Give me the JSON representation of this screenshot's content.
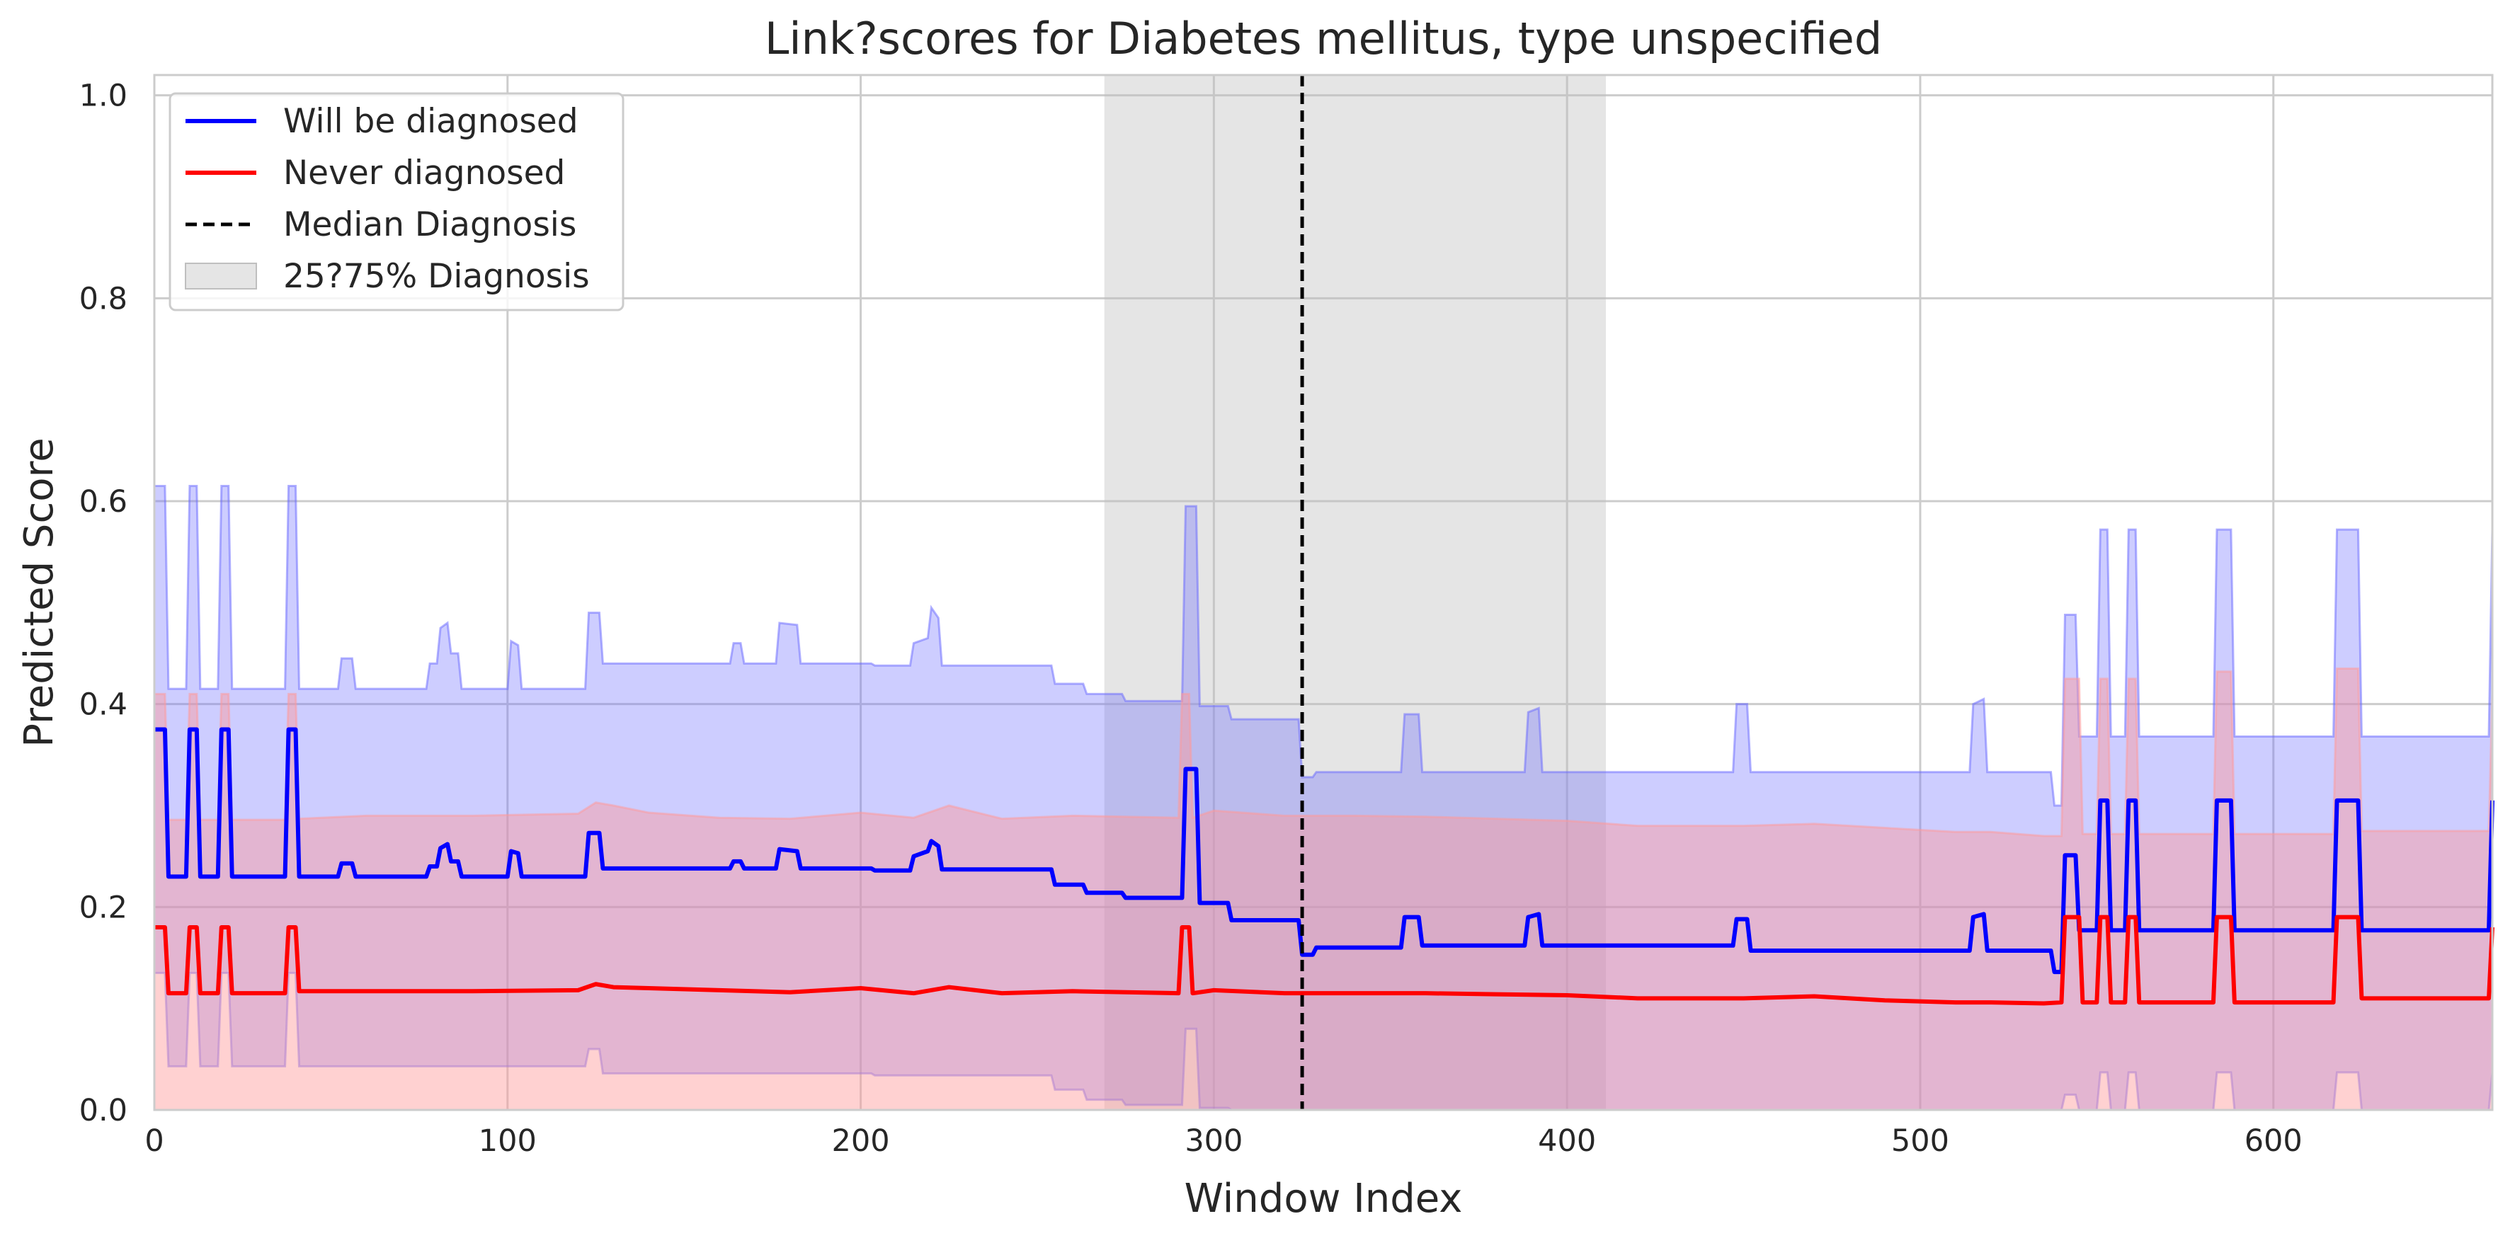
{
  "chart_data": {
    "type": "line",
    "title": "Link?scores for Diabetes mellitus, type unspecified",
    "xlabel": "Window Index",
    "ylabel": "Predicted Score",
    "xlim": [
      0,
      662
    ],
    "ylim": [
      0,
      1.02
    ],
    "x_ticks": [
      "0",
      "100",
      "200",
      "300",
      "400",
      "500",
      "600"
    ],
    "y_ticks": [
      "0.0",
      "0.2",
      "0.4",
      "0.6",
      "0.8",
      "1.0"
    ],
    "grid": true,
    "legend_position": "top-left",
    "legend": {
      "diagnosed": "Will be diagnosed",
      "never": "Never diagnosed",
      "median": "Median Diagnosis",
      "iqr": "25?75% Diagnosis"
    },
    "colors": {
      "diagnosed": "#0000ff",
      "never": "#ff0000",
      "diagnosed_band": "#6666ff",
      "never_band": "#ff9999",
      "iqr_band": "#bfbfbf",
      "median": "#000000",
      "grid": "#cccccc"
    },
    "median_diagnosis": 325,
    "iqr_diagnosis": [
      269,
      411
    ],
    "series": [
      {
        "name": "Will be diagnosed",
        "x": [
          0,
          1,
          3,
          4,
          9,
          10,
          12,
          13,
          18,
          19,
          21,
          22,
          37,
          38,
          40,
          41,
          52,
          53,
          56,
          57,
          77,
          78,
          80,
          81,
          83,
          84,
          86,
          87,
          100,
          101,
          103,
          104,
          122,
          123,
          126,
          127,
          163,
          164,
          166,
          167,
          176,
          177,
          182,
          183,
          203,
          204,
          214,
          215,
          219,
          220,
          222,
          223,
          226,
          227,
          254,
          255,
          263,
          264,
          274,
          275,
          291,
          292,
          295,
          296,
          304,
          305,
          324,
          325,
          328,
          329,
          353,
          354,
          358,
          359,
          388,
          389,
          392,
          393,
          447,
          448,
          451,
          452,
          514,
          515,
          518,
          519,
          537,
          538,
          540,
          541,
          544,
          545,
          550,
          551,
          553,
          554,
          558,
          559,
          561,
          562,
          583,
          584,
          588,
          589,
          617,
          618,
          624,
          625,
          661,
          662
        ],
        "values": [
          0.375,
          0.375,
          0.375,
          0.23,
          0.23,
          0.375,
          0.375,
          0.23,
          0.23,
          0.375,
          0.375,
          0.23,
          0.23,
          0.375,
          0.375,
          0.23,
          0.23,
          0.243,
          0.243,
          0.23,
          0.23,
          0.24,
          0.24,
          0.258,
          0.262,
          0.245,
          0.245,
          0.23,
          0.23,
          0.255,
          0.253,
          0.23,
          0.23,
          0.273,
          0.273,
          0.238,
          0.238,
          0.245,
          0.245,
          0.238,
          0.238,
          0.257,
          0.255,
          0.238,
          0.238,
          0.236,
          0.236,
          0.25,
          0.255,
          0.265,
          0.26,
          0.237,
          0.237,
          0.237,
          0.237,
          0.222,
          0.222,
          0.214,
          0.214,
          0.209,
          0.209,
          0.336,
          0.336,
          0.204,
          0.204,
          0.187,
          0.187,
          0.153,
          0.153,
          0.16,
          0.16,
          0.19,
          0.19,
          0.162,
          0.162,
          0.19,
          0.193,
          0.162,
          0.162,
          0.188,
          0.188,
          0.157,
          0.157,
          0.19,
          0.193,
          0.157,
          0.157,
          0.136,
          0.136,
          0.251,
          0.251,
          0.177,
          0.177,
          0.305,
          0.305,
          0.177,
          0.177,
          0.305,
          0.305,
          0.177,
          0.177,
          0.305,
          0.305,
          0.177,
          0.177,
          0.305,
          0.305,
          0.177,
          0.177,
          0.305
        ]
      },
      {
        "name": "Never diagnosed",
        "x": [
          0,
          1,
          3,
          4,
          9,
          10,
          12,
          13,
          18,
          19,
          21,
          22,
          37,
          38,
          40,
          41,
          60,
          90,
          120,
          125,
          130,
          140,
          160,
          180,
          200,
          215,
          225,
          240,
          260,
          290,
          291,
          293,
          294,
          300,
          320,
          340,
          360,
          380,
          400,
          420,
          450,
          470,
          490,
          510,
          520,
          535,
          540,
          541,
          542,
          545,
          546,
          550,
          551,
          553,
          554,
          558,
          559,
          561,
          562,
          583,
          584,
          588,
          589,
          617,
          618,
          624,
          625,
          661,
          662
        ],
        "values": [
          0.18,
          0.18,
          0.18,
          0.115,
          0.115,
          0.18,
          0.18,
          0.115,
          0.115,
          0.18,
          0.18,
          0.115,
          0.115,
          0.18,
          0.18,
          0.117,
          0.117,
          0.117,
          0.118,
          0.124,
          0.121,
          0.12,
          0.118,
          0.116,
          0.12,
          0.115,
          0.121,
          0.115,
          0.117,
          0.115,
          0.18,
          0.18,
          0.115,
          0.118,
          0.115,
          0.115,
          0.115,
          0.114,
          0.113,
          0.11,
          0.11,
          0.112,
          0.108,
          0.106,
          0.106,
          0.105,
          0.106,
          0.19,
          0.19,
          0.19,
          0.106,
          0.106,
          0.19,
          0.19,
          0.106,
          0.106,
          0.19,
          0.19,
          0.106,
          0.106,
          0.19,
          0.19,
          0.106,
          0.106,
          0.19,
          0.19,
          0.11,
          0.11,
          0.18
        ]
      }
    ],
    "bands": [
      {
        "series": "Will be diagnosed",
        "x": [
          0,
          1,
          3,
          4,
          9,
          10,
          12,
          13,
          18,
          19,
          21,
          22,
          37,
          38,
          40,
          41,
          52,
          53,
          56,
          57,
          77,
          78,
          80,
          81,
          83,
          84,
          86,
          87,
          100,
          101,
          103,
          104,
          122,
          123,
          126,
          127,
          163,
          164,
          166,
          167,
          176,
          177,
          182,
          183,
          203,
          204,
          214,
          215,
          219,
          220,
          222,
          223,
          226,
          227,
          254,
          255,
          263,
          264,
          274,
          275,
          291,
          292,
          295,
          296,
          304,
          305,
          324,
          325,
          328,
          329,
          353,
          354,
          358,
          359,
          388,
          389,
          392,
          393,
          447,
          448,
          451,
          452,
          514,
          515,
          518,
          519,
          537,
          538,
          540,
          541,
          544,
          545,
          550,
          551,
          553,
          554,
          558,
          559,
          561,
          562,
          583,
          584,
          588,
          589,
          617,
          618,
          624,
          625,
          661,
          662
        ],
        "upper": [
          0.615,
          0.615,
          0.615,
          0.415,
          0.415,
          0.615,
          0.615,
          0.415,
          0.415,
          0.615,
          0.615,
          0.415,
          0.415,
          0.615,
          0.615,
          0.415,
          0.415,
          0.445,
          0.445,
          0.415,
          0.415,
          0.44,
          0.44,
          0.475,
          0.48,
          0.45,
          0.45,
          0.415,
          0.415,
          0.462,
          0.458,
          0.415,
          0.415,
          0.49,
          0.49,
          0.44,
          0.44,
          0.46,
          0.46,
          0.44,
          0.44,
          0.48,
          0.478,
          0.44,
          0.44,
          0.438,
          0.438,
          0.46,
          0.465,
          0.495,
          0.485,
          0.438,
          0.438,
          0.438,
          0.438,
          0.42,
          0.42,
          0.41,
          0.41,
          0.403,
          0.403,
          0.595,
          0.595,
          0.398,
          0.398,
          0.385,
          0.385,
          0.328,
          0.328,
          0.333,
          0.333,
          0.39,
          0.39,
          0.333,
          0.333,
          0.392,
          0.396,
          0.333,
          0.333,
          0.4,
          0.4,
          0.333,
          0.333,
          0.4,
          0.405,
          0.333,
          0.333,
          0.3,
          0.3,
          0.488,
          0.488,
          0.368,
          0.368,
          0.572,
          0.572,
          0.368,
          0.368,
          0.572,
          0.572,
          0.368,
          0.368,
          0.572,
          0.572,
          0.368,
          0.368,
          0.572,
          0.572,
          0.368,
          0.368,
          0.572
        ],
        "lower": [
          0.135,
          0.135,
          0.135,
          0.043,
          0.043,
          0.135,
          0.135,
          0.043,
          0.043,
          0.135,
          0.135,
          0.043,
          0.043,
          0.135,
          0.135,
          0.043,
          0.043,
          0.043,
          0.043,
          0.043,
          0.043,
          0.043,
          0.043,
          0.043,
          0.043,
          0.043,
          0.043,
          0.043,
          0.043,
          0.043,
          0.043,
          0.043,
          0.043,
          0.06,
          0.06,
          0.036,
          0.036,
          0.036,
          0.036,
          0.036,
          0.036,
          0.036,
          0.036,
          0.036,
          0.036,
          0.034,
          0.034,
          0.034,
          0.034,
          0.034,
          0.034,
          0.034,
          0.034,
          0.034,
          0.034,
          0.02,
          0.02,
          0.01,
          0.01,
          0.005,
          0.005,
          0.08,
          0.08,
          0.002,
          0.002,
          0,
          0,
          0,
          0,
          0,
          0,
          0,
          0,
          0,
          0,
          0,
          0,
          0,
          0,
          0,
          0,
          0,
          0,
          0,
          0,
          0,
          0,
          0,
          0,
          0.015,
          0.015,
          0,
          0,
          0.037,
          0.037,
          0,
          0,
          0.037,
          0.037,
          0,
          0,
          0.037,
          0.037,
          0,
          0,
          0.037,
          0.037,
          0,
          0,
          0.037
        ]
      },
      {
        "series": "Never diagnosed",
        "x": [
          0,
          1,
          3,
          4,
          9,
          10,
          12,
          13,
          18,
          19,
          21,
          22,
          37,
          38,
          40,
          41,
          60,
          90,
          120,
          125,
          130,
          140,
          160,
          180,
          200,
          215,
          225,
          240,
          260,
          290,
          291,
          293,
          294,
          300,
          320,
          340,
          360,
          380,
          400,
          420,
          450,
          470,
          490,
          510,
          520,
          535,
          540,
          541,
          542,
          545,
          546,
          550,
          551,
          553,
          554,
          558,
          559,
          561,
          562,
          583,
          584,
          588,
          589,
          617,
          618,
          624,
          625,
          661,
          662
        ],
        "upper": [
          0.41,
          0.41,
          0.41,
          0.286,
          0.286,
          0.41,
          0.41,
          0.286,
          0.286,
          0.41,
          0.41,
          0.286,
          0.286,
          0.41,
          0.41,
          0.287,
          0.29,
          0.29,
          0.292,
          0.303,
          0.3,
          0.293,
          0.288,
          0.287,
          0.293,
          0.288,
          0.3,
          0.287,
          0.29,
          0.288,
          0.41,
          0.41,
          0.288,
          0.295,
          0.29,
          0.29,
          0.289,
          0.287,
          0.285,
          0.28,
          0.28,
          0.282,
          0.278,
          0.274,
          0.274,
          0.27,
          0.27,
          0.425,
          0.425,
          0.425,
          0.272,
          0.272,
          0.425,
          0.425,
          0.272,
          0.272,
          0.425,
          0.425,
          0.272,
          0.272,
          0.432,
          0.432,
          0.272,
          0.272,
          0.435,
          0.435,
          0.275,
          0.275,
          0.41
        ],
        "lower": [
          0,
          0,
          0,
          0,
          0,
          0,
          0,
          0,
          0,
          0,
          0,
          0,
          0,
          0,
          0,
          0,
          0,
          0,
          0,
          0,
          0,
          0,
          0,
          0,
          0,
          0,
          0,
          0,
          0,
          0,
          0,
          0,
          0,
          0,
          0,
          0,
          0,
          0,
          0,
          0,
          0,
          0,
          0,
          0,
          0,
          0,
          0,
          0,
          0,
          0,
          0,
          0,
          0,
          0,
          0,
          0,
          0,
          0,
          0,
          0,
          0,
          0,
          0,
          0,
          0,
          0,
          0,
          0,
          0
        ]
      }
    ]
  }
}
